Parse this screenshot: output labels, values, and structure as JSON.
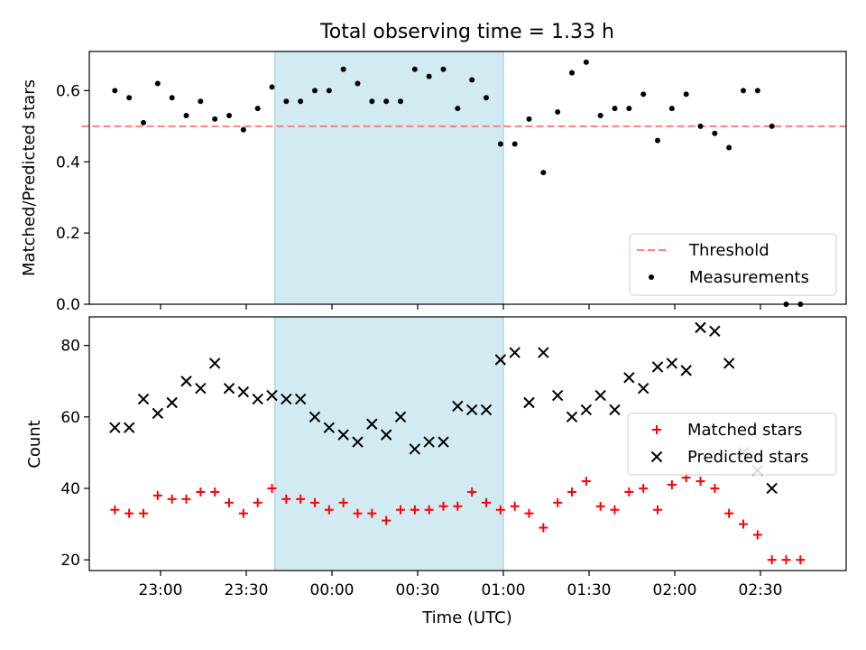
{
  "title": "Total observing time = 1.33 h",
  "colors": {
    "threshold": "#ff7f7f",
    "measurements": "#000000",
    "matched": "#ff0000",
    "predicted": "#000000",
    "shade": "#add8e6"
  },
  "chart_data": [
    {
      "type": "scatter",
      "panel": "top",
      "ylabel": "Matched/Predicted stars",
      "ylim": [
        0.0,
        0.71
      ],
      "yticks": [
        "0.0",
        "0.2",
        "0.4",
        "0.6"
      ],
      "shaded_x_range": [
        "23:40",
        "01:00"
      ],
      "legend": {
        "position": "bottom-right",
        "entries": [
          "Threshold",
          "Measurements"
        ]
      },
      "series": [
        {
          "name": "Threshold",
          "kind": "dashed-line",
          "x": [
            "22:45",
            "02:45"
          ],
          "y": [
            0.5,
            0.5
          ]
        },
        {
          "name": "Measurements",
          "kind": "dots",
          "x": [
            "22:44",
            "22:49",
            "22:54",
            "22:59",
            "23:04",
            "23:09",
            "23:14",
            "23:19",
            "23:24",
            "23:29",
            "23:34",
            "23:39",
            "23:44",
            "23:49",
            "23:54",
            "23:59",
            "00:04",
            "00:09",
            "00:14",
            "00:19",
            "00:24",
            "00:29",
            "00:34",
            "00:39",
            "00:44",
            "00:49",
            "00:54",
            "00:59",
            "01:04",
            "01:09",
            "01:14",
            "01:19",
            "01:24",
            "01:29",
            "01:34",
            "01:39",
            "01:44",
            "01:49",
            "01:54",
            "01:59",
            "02:04",
            "02:09",
            "02:14",
            "02:19",
            "02:24",
            "02:29",
            "02:34",
            "02:39",
            "02:44",
            "02:49"
          ],
          "y": [
            0.6,
            0.58,
            0.51,
            0.62,
            0.58,
            0.53,
            0.57,
            0.52,
            0.53,
            0.49,
            0.55,
            0.61,
            0.57,
            0.57,
            0.6,
            0.6,
            0.66,
            0.62,
            0.57,
            0.57,
            0.57,
            0.66,
            0.64,
            0.66,
            0.55,
            0.63,
            0.58,
            0.45,
            0.45,
            0.52,
            0.37,
            0.54,
            0.65,
            0.68,
            0.53,
            0.55,
            0.55,
            0.59,
            0.46,
            0.55,
            0.59,
            0.5,
            0.48,
            0.44,
            0.6,
            0.6,
            0.5,
            0.0,
            0.0,
            null
          ]
        }
      ]
    },
    {
      "type": "scatter",
      "panel": "bottom",
      "ylabel": "Count",
      "xlabel": "Time (UTC)",
      "ylim": [
        17,
        88
      ],
      "yticks": [
        "20",
        "40",
        "60",
        "80"
      ],
      "xticks": [
        "23:00",
        "23:30",
        "00:00",
        "00:30",
        "01:00",
        "01:30",
        "02:00",
        "02:30"
      ],
      "shaded_x_range": [
        "23:40",
        "01:00"
      ],
      "legend": {
        "position": "right",
        "entries": [
          "Matched stars",
          "Predicted stars"
        ]
      },
      "x": [
        "22:44",
        "22:49",
        "22:54",
        "22:59",
        "23:04",
        "23:09",
        "23:14",
        "23:19",
        "23:24",
        "23:29",
        "23:34",
        "23:39",
        "23:44",
        "23:49",
        "23:54",
        "23:59",
        "00:04",
        "00:09",
        "00:14",
        "00:19",
        "00:24",
        "00:29",
        "00:34",
        "00:39",
        "00:44",
        "00:49",
        "00:54",
        "00:59",
        "01:04",
        "01:09",
        "01:14",
        "01:19",
        "01:24",
        "01:29",
        "01:34",
        "01:39",
        "01:44",
        "01:49",
        "01:54",
        "01:59",
        "02:04",
        "02:09",
        "02:14",
        "02:19",
        "02:24",
        "02:29",
        "02:34",
        "02:39",
        "02:44",
        "02:49"
      ],
      "series": [
        {
          "name": "Matched stars",
          "marker": "plus",
          "values": [
            34,
            33,
            33,
            38,
            37,
            37,
            39,
            39,
            36,
            33,
            36,
            40,
            37,
            37,
            36,
            34,
            36,
            33,
            33,
            31,
            34,
            34,
            34,
            35,
            35,
            39,
            36,
            34,
            35,
            33,
            29,
            36,
            39,
            42,
            35,
            34,
            39,
            40,
            34,
            41,
            43,
            42,
            40,
            33,
            30,
            27,
            20,
            20,
            20,
            null
          ]
        },
        {
          "name": "Predicted stars",
          "marker": "x",
          "values": [
            57,
            57,
            65,
            61,
            64,
            70,
            68,
            75,
            68,
            67,
            65,
            66,
            65,
            65,
            60,
            57,
            55,
            53,
            58,
            55,
            60,
            51,
            53,
            53,
            63,
            62,
            62,
            76,
            78,
            64,
            78,
            66,
            60,
            62,
            66,
            62,
            71,
            68,
            74,
            75,
            73,
            85,
            84,
            75,
            50,
            45,
            40,
            null,
            null,
            null
          ]
        }
      ]
    }
  ]
}
